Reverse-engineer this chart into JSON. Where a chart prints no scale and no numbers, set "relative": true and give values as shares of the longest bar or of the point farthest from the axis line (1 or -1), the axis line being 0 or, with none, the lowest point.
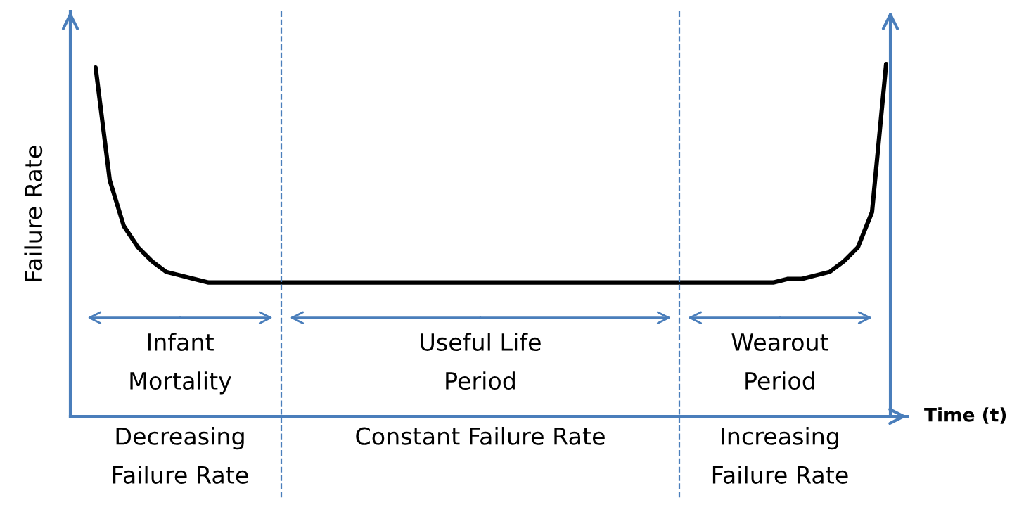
{
  "chart_data": {
    "type": "line",
    "relative": true,
    "xlabel": "Time (t)",
    "ylabel": "Failure Rate",
    "categories": [
      null,
      null,
      null,
      null,
      null,
      null,
      null,
      null,
      null,
      null,
      null,
      null,
      null,
      null,
      null,
      null,
      null,
      null,
      null,
      null,
      null,
      null,
      null,
      null,
      null,
      null,
      null,
      null,
      null,
      null,
      null,
      null,
      null,
      null,
      null,
      null,
      null,
      null,
      null,
      null,
      null,
      null,
      null,
      null,
      null,
      null,
      null,
      null,
      null,
      null,
      null,
      null,
      null,
      null,
      null,
      null,
      null
    ],
    "series": [
      {
        "color": "#000000",
        "values": [
          0.99,
          0.67,
          0.54,
          0.48,
          0.44,
          0.41,
          0.4,
          0.39,
          0.38,
          0.38,
          0.38,
          0.38,
          0.38,
          0.38,
          0.38,
          0.38,
          0.38,
          0.38,
          0.38,
          0.38,
          0.38,
          0.38,
          0.38,
          0.38,
          0.38,
          0.38,
          0.38,
          0.38,
          0.38,
          0.38,
          0.38,
          0.38,
          0.38,
          0.38,
          0.38,
          0.38,
          0.38,
          0.38,
          0.38,
          0.38,
          0.38,
          0.38,
          0.38,
          0.38,
          0.38,
          0.38,
          0.38,
          0.38,
          0.38,
          0.39,
          0.39,
          0.4,
          0.41,
          0.44,
          0.48,
          0.58,
          1
        ]
      }
    ],
    "annotations": [
      "Infant\nMortality",
      "Useful Life\nPeriod",
      "Wearout\nPeriod",
      "Decreasing\nFailure Rate",
      "Constant Failure Rate",
      "Increasing\nFailure Rate"
    ],
    "grid": false,
    "legend": false,
    "marker": "none",
    "line_style": "solid"
  }
}
